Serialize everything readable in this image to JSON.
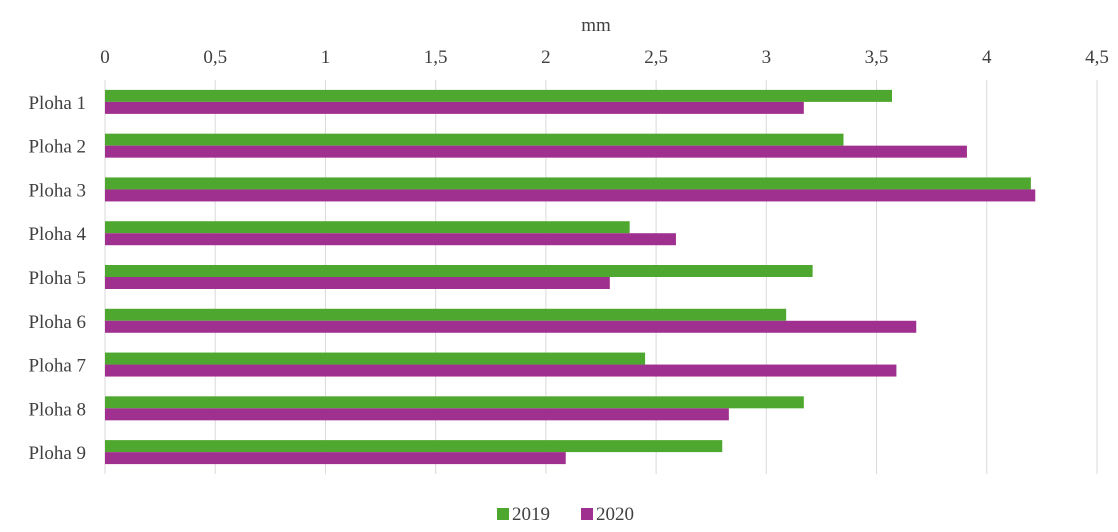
{
  "chart_data": {
    "type": "bar",
    "orientation": "horizontal",
    "xlabel": "mm",
    "xlim": [
      0,
      4.5
    ],
    "x_ticks": [
      "0",
      "0,5",
      "1",
      "1,5",
      "2",
      "2,5",
      "3",
      "3,5",
      "4",
      "4,5"
    ],
    "x_axis_position": "top",
    "grid": true,
    "legend_position": "bottom",
    "categories": [
      "Ploha 1",
      "Ploha 2",
      "Ploha 3",
      "Ploha 4",
      "Ploha 5",
      "Ploha 6",
      "Ploha 7",
      "Ploha 8",
      "Ploha 9"
    ],
    "series": [
      {
        "name": "2019",
        "color": "#4ea72e",
        "values": [
          3.57,
          3.35,
          4.2,
          2.38,
          3.21,
          3.09,
          2.45,
          3.17,
          2.8
        ]
      },
      {
        "name": "2020",
        "color": "#a0308f",
        "values": [
          3.17,
          3.91,
          4.22,
          2.59,
          2.29,
          3.68,
          3.59,
          2.83,
          2.09
        ]
      }
    ]
  }
}
